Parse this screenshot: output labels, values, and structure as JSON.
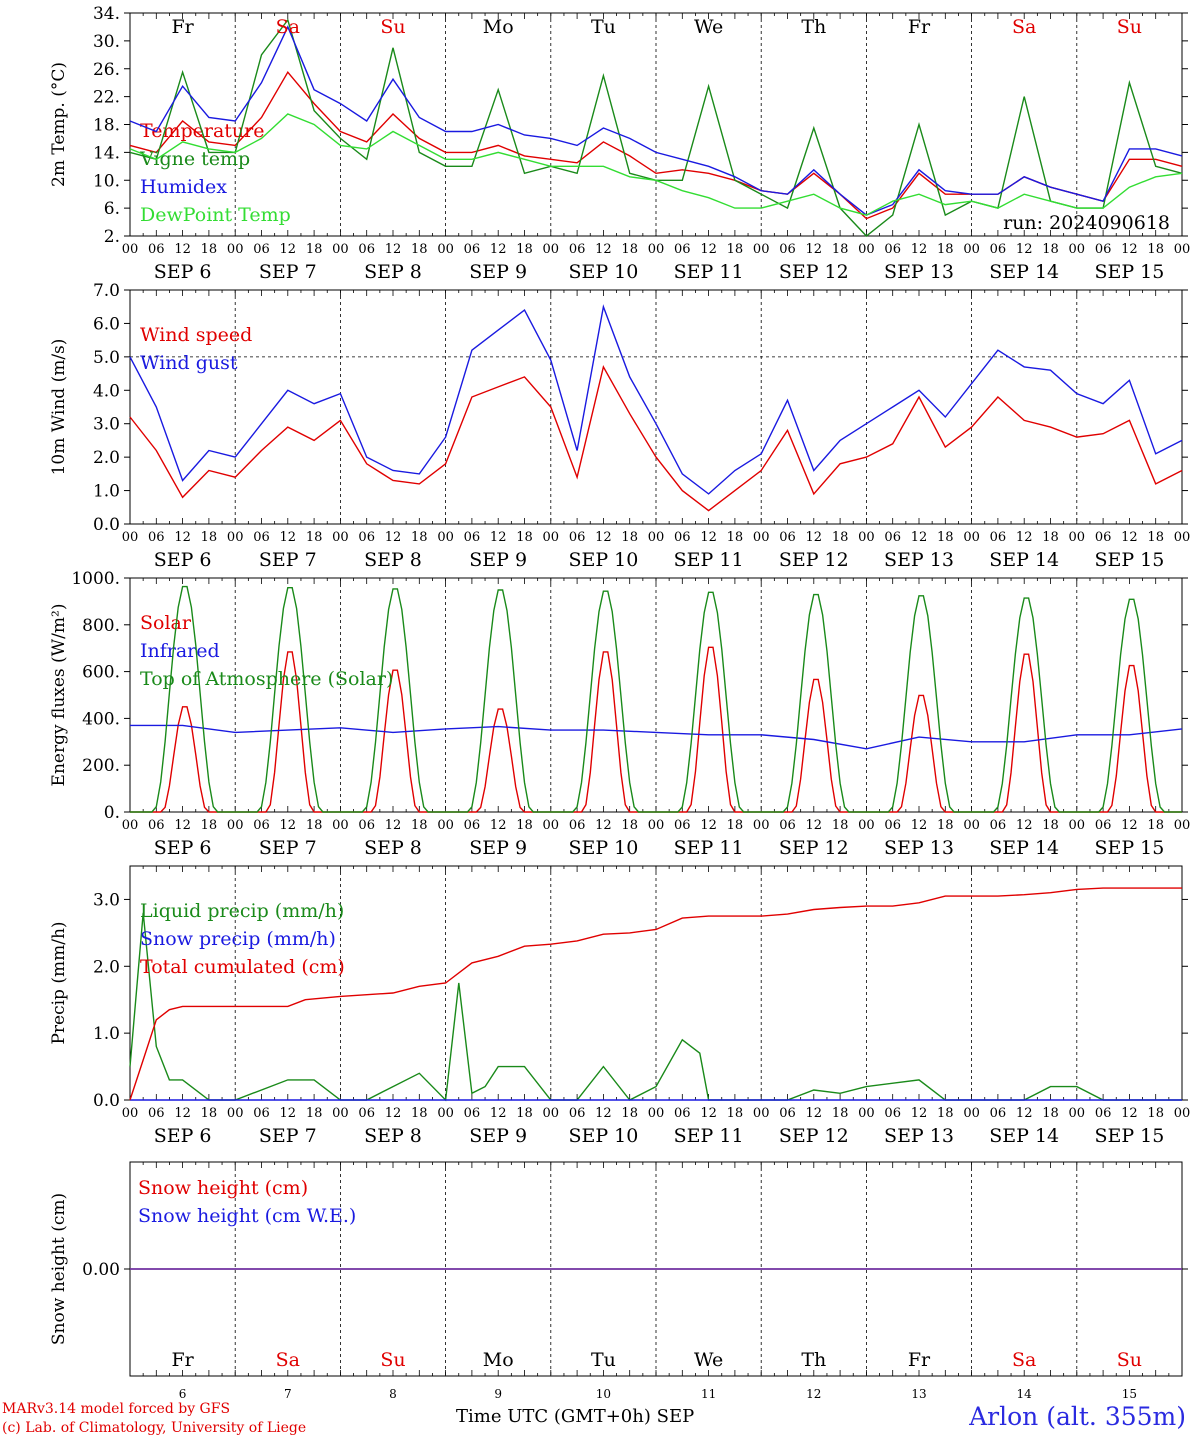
{
  "run_label": "run: 2024090618",
  "credits": {
    "line1": "MARv3.14 model forced by GFS",
    "line2": "(c) Lab. of Climatology, University of Liege"
  },
  "station": "Arlon (alt. 355m)",
  "x_axis": {
    "title": "Time UTC (GMT+0h)",
    "month": "SEP",
    "hour_labels": [
      "00",
      "06",
      "12",
      "18"
    ],
    "days": [
      {
        "dow": "Fr",
        "date": "6",
        "label": "SEP  6",
        "weekend": false
      },
      {
        "dow": "Sa",
        "date": "7",
        "label": "SEP  7",
        "weekend": true
      },
      {
        "dow": "Su",
        "date": "8",
        "label": "SEP  8",
        "weekend": true
      },
      {
        "dow": "Mo",
        "date": "9",
        "label": "SEP  9",
        "weekend": false
      },
      {
        "dow": "Tu",
        "date": "10",
        "label": "SEP 10",
        "weekend": false
      },
      {
        "dow": "We",
        "date": "11",
        "label": "SEP 11",
        "weekend": false
      },
      {
        "dow": "Th",
        "date": "12",
        "label": "SEP 12",
        "weekend": false
      },
      {
        "dow": "Fr",
        "date": "13",
        "label": "SEP 13",
        "weekend": false
      },
      {
        "dow": "Sa",
        "date": "14",
        "label": "SEP 14",
        "weekend": true
      },
      {
        "dow": "Su",
        "date": "15",
        "label": "SEP 15",
        "weekend": true
      }
    ]
  },
  "colors": {
    "red": "#e00000",
    "green": "#1a8a1a",
    "blue": "#1a1ae0",
    "light_green": "#33dd33",
    "purple": "#7030a0"
  },
  "chart_data": [
    {
      "id": "temperature",
      "type": "line",
      "ylabel": "2m Temp. (°C)",
      "ylim": [
        2,
        34
      ],
      "yticks": [
        "34.",
        "30.",
        "26.",
        "22.",
        "18.",
        "14.",
        "10.",
        "6.",
        "2."
      ],
      "x_unit": "hours since SEP 6 00 UTC",
      "series": [
        {
          "name": "Temperature",
          "color": "#e00000",
          "x": [
            0,
            6,
            12,
            18,
            24,
            30,
            36,
            42,
            48,
            54,
            60,
            66,
            72,
            78,
            84,
            90,
            96,
            102,
            108,
            114,
            120,
            126,
            132,
            138,
            144,
            150,
            156,
            162,
            168,
            174,
            180,
            186,
            192,
            198,
            204,
            210,
            216,
            222,
            228,
            234,
            240
          ],
          "values": [
            15,
            14,
            18.5,
            15.5,
            15,
            19,
            25.5,
            21,
            17,
            15.5,
            19.5,
            16,
            14,
            14,
            15,
            13.5,
            13,
            12.5,
            15.5,
            13.5,
            11,
            11.5,
            11,
            10,
            8.5,
            8,
            11,
            8,
            4.5,
            6,
            11,
            8,
            8,
            8,
            10.5,
            9,
            8,
            7,
            13,
            13,
            12
          ]
        },
        {
          "name": "Vigne temp",
          "color": "#1a8a1a",
          "x": [
            0,
            6,
            12,
            18,
            24,
            30,
            36,
            42,
            48,
            54,
            60,
            66,
            72,
            78,
            84,
            90,
            96,
            102,
            108,
            114,
            120,
            126,
            132,
            138,
            144,
            150,
            156,
            162,
            168,
            174,
            180,
            186,
            192,
            198,
            204,
            210,
            216,
            222,
            228,
            234,
            240
          ],
          "values": [
            14,
            13,
            25.5,
            14,
            14,
            28,
            33,
            20,
            16,
            13,
            29,
            14,
            12,
            12,
            23,
            11,
            12,
            11,
            25,
            11,
            10,
            10,
            23.5,
            10,
            8,
            6,
            17.5,
            6,
            2,
            5,
            18,
            5,
            7,
            6,
            22,
            7,
            6,
            6,
            24,
            12,
            11
          ]
        },
        {
          "name": "Humidex",
          "color": "#1a1ae0",
          "x": [
            0,
            6,
            12,
            18,
            24,
            30,
            36,
            42,
            48,
            54,
            60,
            66,
            72,
            78,
            84,
            90,
            96,
            102,
            108,
            114,
            120,
            126,
            132,
            138,
            144,
            150,
            156,
            162,
            168,
            174,
            180,
            186,
            192,
            198,
            204,
            210,
            216,
            222,
            228,
            234,
            240
          ],
          "values": [
            18.5,
            17,
            23.5,
            19,
            18.5,
            24,
            32,
            23,
            21,
            18.5,
            24.5,
            19,
            17,
            17,
            18,
            16.5,
            16,
            15,
            17.5,
            16,
            14,
            13,
            12,
            10.5,
            8.5,
            8,
            11.5,
            8,
            5,
            6.5,
            11.5,
            8.5,
            8,
            8,
            10.5,
            9,
            8,
            7,
            14.5,
            14.5,
            13.5
          ]
        },
        {
          "name": "DewPoint Temp",
          "color": "#33dd33",
          "x": [
            0,
            6,
            12,
            18,
            24,
            30,
            36,
            42,
            48,
            54,
            60,
            66,
            72,
            78,
            84,
            90,
            96,
            102,
            108,
            114,
            120,
            126,
            132,
            138,
            144,
            150,
            156,
            162,
            168,
            174,
            180,
            186,
            192,
            198,
            204,
            210,
            216,
            222,
            228,
            234,
            240
          ],
          "values": [
            14.5,
            13,
            15.5,
            14.5,
            14,
            16,
            19.5,
            18,
            15,
            14.5,
            17,
            15,
            13,
            13,
            14,
            13,
            12,
            12,
            12,
            10.5,
            10,
            8.5,
            7.5,
            6,
            6,
            7,
            8,
            6,
            5,
            7,
            8,
            6.5,
            7,
            6,
            8,
            7,
            6,
            6,
            9,
            10.5,
            11
          ]
        }
      ]
    },
    {
      "id": "wind",
      "type": "line",
      "ylabel": "10m Wind (m/s)",
      "ylim": [
        0,
        7
      ],
      "yticks": [
        "7.0",
        "6.0",
        "5.0",
        "4.0",
        "3.0",
        "2.0",
        "1.0",
        "0.0"
      ],
      "reference_line": 5,
      "series": [
        {
          "name": "Wind speed",
          "color": "#e00000",
          "x": [
            0,
            6,
            12,
            18,
            24,
            30,
            36,
            42,
            48,
            54,
            60,
            66,
            72,
            78,
            84,
            90,
            96,
            102,
            108,
            114,
            120,
            126,
            132,
            138,
            144,
            150,
            156,
            162,
            168,
            174,
            180,
            186,
            192,
            198,
            204,
            210,
            216,
            222,
            228,
            234,
            240
          ],
          "values": [
            3.2,
            2.2,
            0.8,
            1.6,
            1.4,
            2.2,
            2.9,
            2.5,
            3.1,
            1.8,
            1.3,
            1.2,
            1.8,
            3.8,
            4.1,
            4.4,
            3.5,
            1.4,
            4.7,
            3.3,
            2.0,
            1.0,
            0.4,
            1.0,
            1.6,
            2.8,
            0.9,
            1.8,
            2.0,
            2.4,
            3.8,
            2.3,
            2.9,
            3.8,
            3.1,
            2.9,
            2.6,
            2.7,
            3.1,
            1.2,
            1.6
          ]
        },
        {
          "name": "Wind gust",
          "color": "#1a1ae0",
          "x": [
            0,
            6,
            12,
            18,
            24,
            30,
            36,
            42,
            48,
            54,
            60,
            66,
            72,
            78,
            84,
            90,
            96,
            102,
            108,
            114,
            120,
            126,
            132,
            138,
            144,
            150,
            156,
            162,
            168,
            174,
            180,
            186,
            192,
            198,
            204,
            210,
            216,
            222,
            228,
            234,
            240
          ],
          "values": [
            5.0,
            3.5,
            1.3,
            2.2,
            2.0,
            3.0,
            4.0,
            3.6,
            3.9,
            2.0,
            1.6,
            1.5,
            2.6,
            5.2,
            5.8,
            6.4,
            4.9,
            2.2,
            6.5,
            4.4,
            3.0,
            1.5,
            0.9,
            1.6,
            2.1,
            3.7,
            1.6,
            2.5,
            3.0,
            3.5,
            4.0,
            3.2,
            4.2,
            5.2,
            4.7,
            4.6,
            3.9,
            3.6,
            4.3,
            2.1,
            2.5
          ]
        }
      ]
    },
    {
      "id": "energy",
      "type": "line",
      "ylabel": "Energy fluxes (W/m²)",
      "ylim": [
        0,
        1000
      ],
      "yticks": [
        "1000.",
        "800.",
        "600.",
        "400.",
        "200.",
        "0."
      ],
      "series": [
        {
          "name": "Solar",
          "color": "#e00000",
          "day_peak": [
            460,
            700,
            620,
            450,
            700,
            720,
            580,
            510,
            690,
            640
          ]
        },
        {
          "name": "Infrared",
          "color": "#1a1ae0",
          "x": [
            0,
            12,
            24,
            36,
            48,
            60,
            72,
            84,
            96,
            108,
            120,
            132,
            144,
            156,
            168,
            180,
            192,
            204,
            216,
            228,
            240
          ],
          "values": [
            370,
            370,
            340,
            350,
            360,
            340,
            355,
            365,
            350,
            350,
            340,
            330,
            330,
            310,
            270,
            320,
            300,
            300,
            330,
            330,
            355
          ]
        },
        {
          "name": "Top of Atmosphere (Solar)",
          "color": "#1a8a1a",
          "day_peak": [
            975,
            970,
            965,
            960,
            955,
            950,
            940,
            935,
            925,
            920
          ]
        }
      ]
    },
    {
      "id": "precip",
      "type": "line",
      "ylabel": "Precip (mm/h)",
      "ylim": [
        0,
        3.5
      ],
      "yticks": [
        "3.0",
        "2.0",
        "1.0",
        "0.0"
      ],
      "series": [
        {
          "name": "Liquid precip (mm/h)",
          "color": "#1a8a1a",
          "x": [
            0,
            3,
            6,
            9,
            12,
            18,
            24,
            36,
            42,
            48,
            54,
            60,
            66,
            72,
            75,
            78,
            81,
            84,
            90,
            96,
            102,
            108,
            114,
            120,
            126,
            130,
            132,
            138,
            144,
            150,
            156,
            162,
            168,
            180,
            186,
            192,
            198,
            204,
            210,
            216,
            222,
            228,
            240
          ],
          "values": [
            0.5,
            2.8,
            0.8,
            0.3,
            0.3,
            0,
            0,
            0.3,
            0.3,
            0,
            0,
            0.2,
            0.4,
            0,
            1.75,
            0.1,
            0.2,
            0.5,
            0.5,
            0,
            0,
            0.5,
            0,
            0.2,
            0.9,
            0.7,
            0,
            0,
            0,
            0,
            0.15,
            0.1,
            0.2,
            0.3,
            0,
            0,
            0,
            0,
            0.2,
            0.2,
            0,
            0,
            0
          ]
        },
        {
          "name": "Snow precip (mm/h)",
          "color": "#1a1ae0",
          "x": [
            0,
            240
          ],
          "values": [
            0,
            0
          ]
        },
        {
          "name": "Total cumulated (cm)",
          "color": "#e00000",
          "x": [
            0,
            3,
            6,
            9,
            12,
            24,
            36,
            40,
            48,
            60,
            66,
            72,
            78,
            84,
            90,
            96,
            102,
            108,
            114,
            120,
            126,
            132,
            138,
            144,
            150,
            156,
            162,
            168,
            174,
            180,
            186,
            192,
            198,
            204,
            210,
            216,
            222,
            228,
            234,
            240
          ],
          "values": [
            0,
            0.6,
            1.2,
            1.35,
            1.4,
            1.4,
            1.4,
            1.5,
            1.55,
            1.6,
            1.7,
            1.75,
            2.05,
            2.15,
            2.3,
            2.33,
            2.38,
            2.48,
            2.5,
            2.55,
            2.72,
            2.75,
            2.75,
            2.75,
            2.78,
            2.85,
            2.88,
            2.9,
            2.9,
            2.95,
            3.05,
            3.05,
            3.05,
            3.07,
            3.1,
            3.15,
            3.17,
            3.17,
            3.17,
            3.17
          ]
        }
      ]
    },
    {
      "id": "snow",
      "type": "line",
      "ylabel": "Snow height (cm)",
      "ylim": [
        -1,
        1
      ],
      "yticks": [
        "0.00"
      ],
      "series": [
        {
          "name": "Snow height (cm)",
          "color": "#e00000",
          "x": [
            0,
            240
          ],
          "values": [
            0,
            0
          ]
        },
        {
          "name": "Snow height (cm W.E.)",
          "color": "#1a1ae0",
          "x": [
            0,
            240
          ],
          "values": [
            0,
            0
          ]
        }
      ]
    }
  ]
}
